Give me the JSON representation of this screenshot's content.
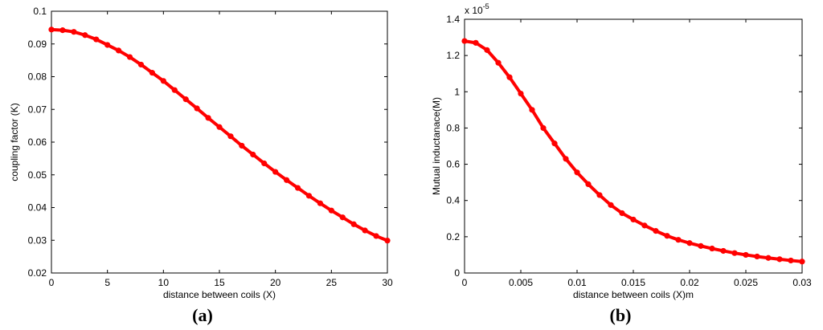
{
  "chart_data": [
    {
      "type": "line",
      "panel_label": "(a)",
      "xlabel": "distance between coils (X)",
      "ylabel": "coupling factor (K)",
      "xlim": [
        0,
        30
      ],
      "ylim": [
        0.02,
        0.1
      ],
      "xticks": [
        "0",
        "5",
        "10",
        "15",
        "20",
        "25",
        "30"
      ],
      "yticks": [
        "0.02",
        "0.03",
        "0.04",
        "0.05",
        "0.06",
        "0.07",
        "0.08",
        "0.09",
        "0.1"
      ],
      "grid": false,
      "color": "#ff0000",
      "series": [
        {
          "x": [
            0,
            1,
            2,
            3,
            4,
            5,
            6,
            7,
            8,
            9,
            10,
            11,
            12,
            13,
            14,
            15,
            16,
            17,
            18,
            19,
            20,
            21,
            22,
            23,
            24,
            25,
            26,
            27,
            28,
            29,
            30
          ],
          "y": [
            0.0944,
            0.0942,
            0.0937,
            0.0927,
            0.0914,
            0.0897,
            0.088,
            0.086,
            0.0837,
            0.0812,
            0.0787,
            0.0759,
            0.0731,
            0.0703,
            0.0674,
            0.0646,
            0.0618,
            0.0589,
            0.0562,
            0.0535,
            0.0509,
            0.0484,
            0.046,
            0.0436,
            0.0413,
            0.0391,
            0.037,
            0.0349,
            0.033,
            0.0313,
            0.0299
          ]
        }
      ]
    },
    {
      "type": "line",
      "panel_label": "(b)",
      "xlabel": "distance between coils (X)m",
      "ylabel": "Mutual inductanace(M)",
      "y_multiplier": "x 10",
      "y_multiplier_exp": "-5",
      "xlim": [
        0,
        0.03
      ],
      "ylim": [
        0,
        1.4
      ],
      "xticks": [
        "0",
        "0.005",
        "0.01",
        "0.015",
        "0.02",
        "0.025",
        "0.03"
      ],
      "yticks": [
        "0",
        "0.2",
        "0.4",
        "0.6",
        "0.8",
        "1",
        "1.2",
        "1.4"
      ],
      "grid": false,
      "color": "#ff0000",
      "series": [
        {
          "x": [
            0,
            0.001,
            0.002,
            0.003,
            0.004,
            0.005,
            0.006,
            0.007,
            0.008,
            0.009,
            0.01,
            0.011,
            0.012,
            0.013,
            0.014,
            0.015,
            0.016,
            0.017,
            0.018,
            0.019,
            0.02,
            0.021,
            0.022,
            0.023,
            0.024,
            0.025,
            0.026,
            0.027,
            0.028,
            0.029,
            0.03
          ],
          "y": [
            1.28,
            1.27,
            1.23,
            1.16,
            1.08,
            0.99,
            0.9,
            0.8,
            0.715,
            0.63,
            0.555,
            0.49,
            0.43,
            0.375,
            0.33,
            0.295,
            0.262,
            0.232,
            0.205,
            0.183,
            0.165,
            0.149,
            0.135,
            0.122,
            0.11,
            0.1,
            0.091,
            0.083,
            0.076,
            0.069,
            0.063
          ]
        }
      ]
    }
  ]
}
